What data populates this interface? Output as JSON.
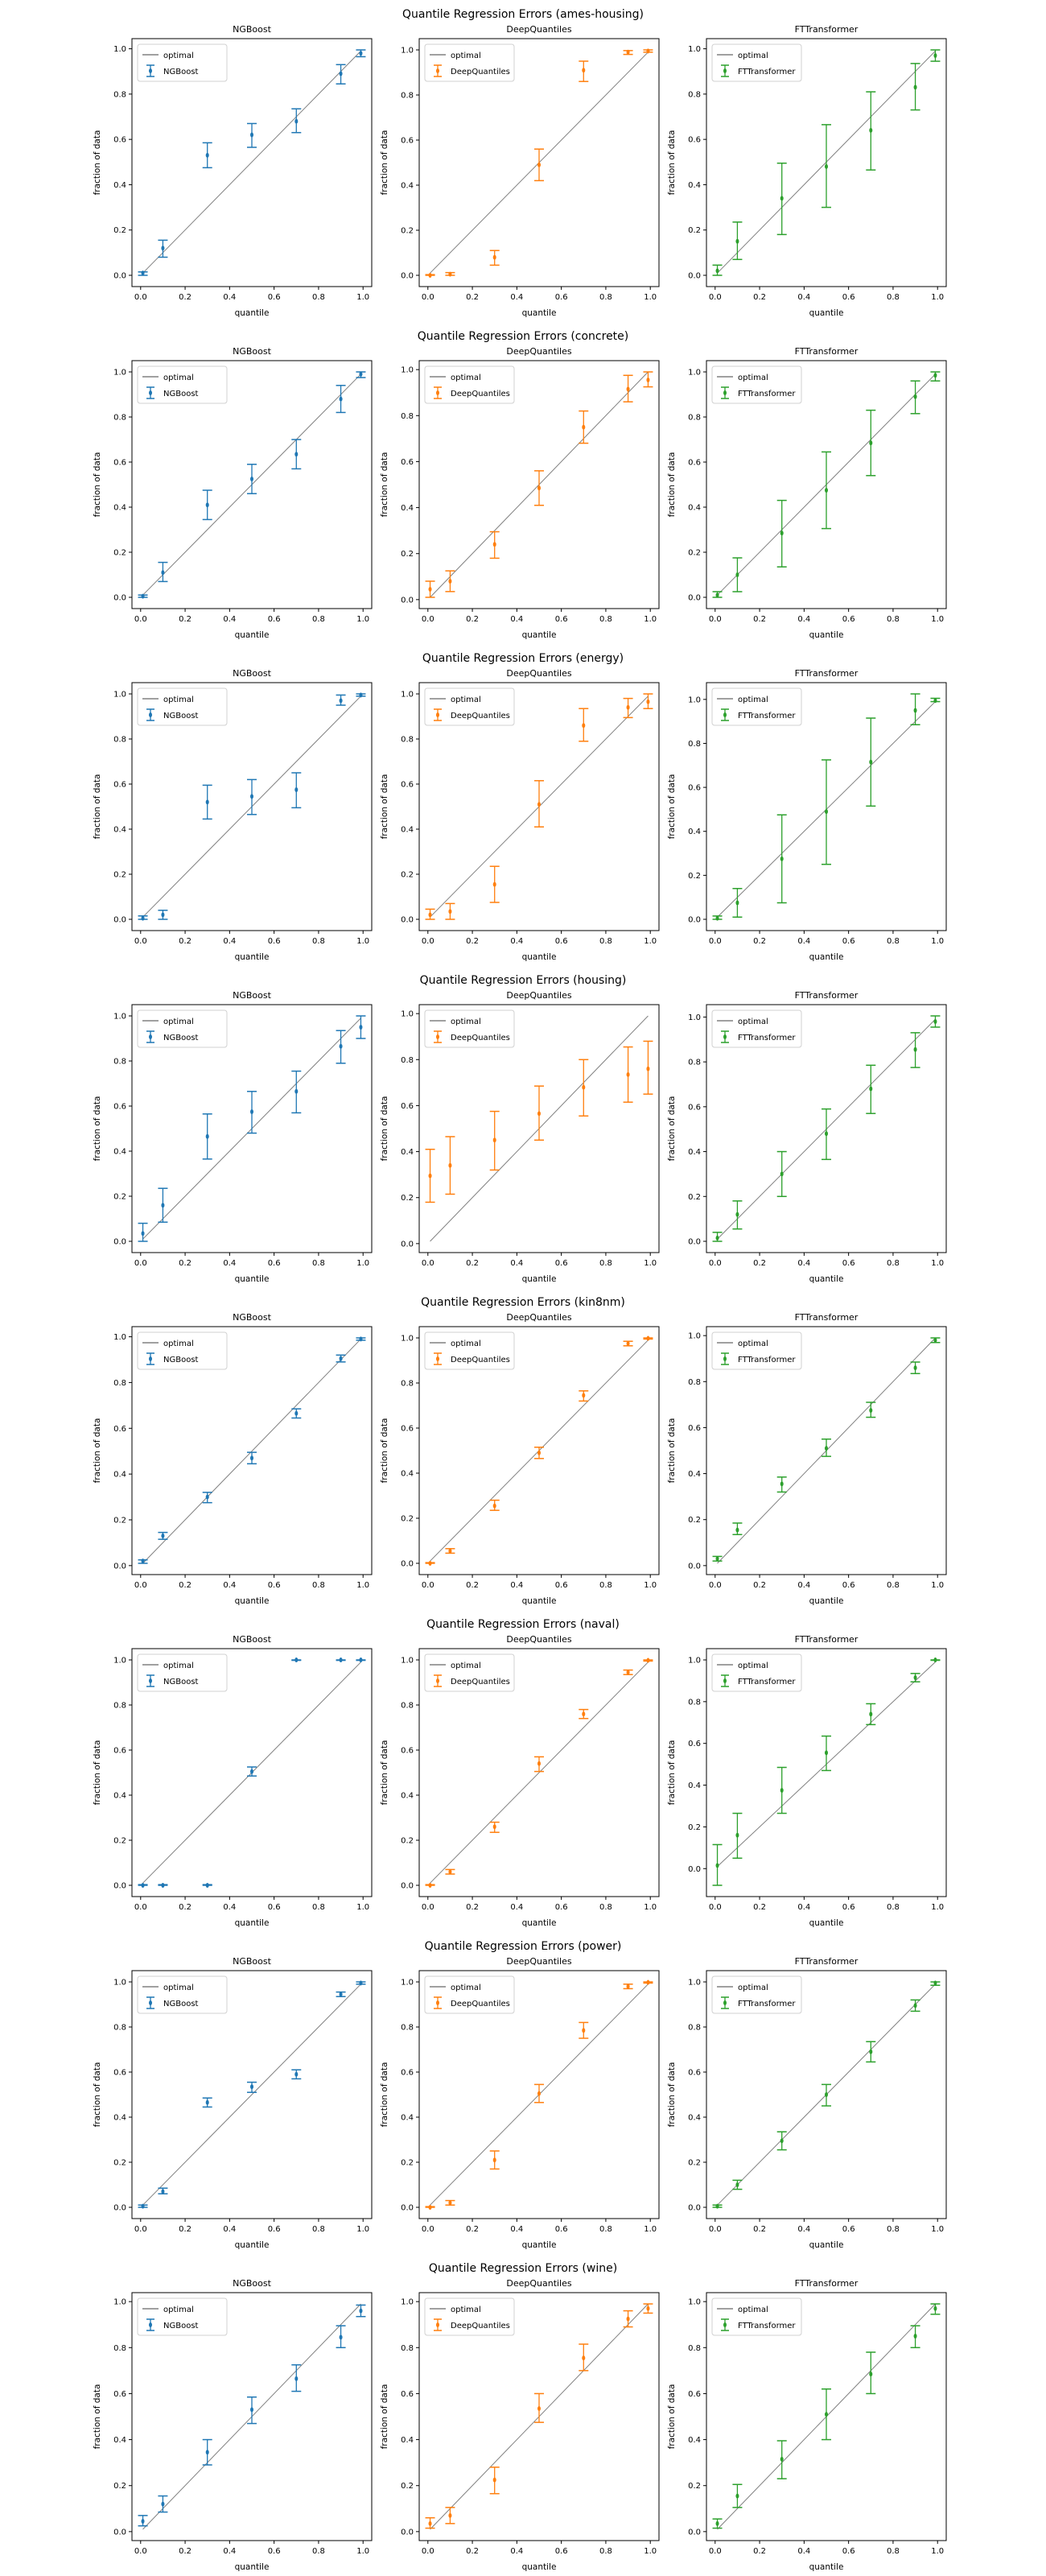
{
  "common": {
    "xlabel": "quantile",
    "ylabel": "fraction of data",
    "optimal_label": "optimal",
    "optimal_color": "#808080",
    "xticks": [
      "0.0",
      "0.2",
      "0.4",
      "0.6",
      "0.8",
      "1.0"
    ],
    "yticks": [
      "0.0",
      "0.2",
      "0.4",
      "0.6",
      "0.8",
      "1.0"
    ]
  },
  "chart_data": [
    {
      "type": "scatter",
      "title": "Quantile Regression Errors (ames-housing)",
      "x": [
        0.01,
        0.1,
        0.3,
        0.5,
        0.7,
        0.9,
        0.99
      ],
      "panels": [
        {
          "title": "NGBoost",
          "series_name": "NGBoost",
          "color": "#1f77b4",
          "y": [
            0.01,
            0.12,
            0.53,
            0.62,
            0.68,
            0.89,
            0.98
          ],
          "err_low": [
            0.0,
            0.08,
            0.475,
            0.565,
            0.63,
            0.845,
            0.965
          ],
          "err_high": [
            0.015,
            0.155,
            0.585,
            0.67,
            0.735,
            0.93,
            0.995
          ]
        },
        {
          "title": "DeepQuantiles",
          "series_name": "DeepQuantiles",
          "color": "#ff7f0e",
          "y": [
            0.0,
            0.005,
            0.08,
            0.49,
            0.91,
            0.99,
            0.995
          ],
          "err_low": [
            0.0,
            0.0,
            0.045,
            0.42,
            0.86,
            0.98,
            0.99
          ],
          "err_high": [
            0.003,
            0.012,
            0.11,
            0.56,
            0.95,
            0.997,
            1.0
          ]
        },
        {
          "title": "FTTransformer",
          "series_name": "FTTransformer",
          "color": "#2ca02c",
          "y": [
            0.02,
            0.15,
            0.34,
            0.48,
            0.64,
            0.83,
            0.97
          ],
          "err_low": [
            0.0,
            0.07,
            0.18,
            0.3,
            0.465,
            0.73,
            0.945
          ],
          "err_high": [
            0.045,
            0.235,
            0.495,
            0.665,
            0.81,
            0.935,
            0.995
          ]
        }
      ]
    },
    {
      "type": "scatter",
      "title": "Quantile Regression Errors (concrete)",
      "x": [
        0.01,
        0.1,
        0.3,
        0.5,
        0.7,
        0.9,
        0.99
      ],
      "panels": [
        {
          "title": "NGBoost",
          "series_name": "NGBoost",
          "color": "#1f77b4",
          "y": [
            0.005,
            0.11,
            0.41,
            0.525,
            0.635,
            0.88,
            0.99
          ],
          "err_low": [
            0.0,
            0.07,
            0.345,
            0.46,
            0.57,
            0.82,
            0.975
          ],
          "err_high": [
            0.01,
            0.155,
            0.475,
            0.59,
            0.7,
            0.94,
            1.0
          ]
        },
        {
          "title": "DeepQuantiles",
          "series_name": "DeepQuantiles",
          "color": "#ff7f0e",
          "y": [
            0.045,
            0.08,
            0.24,
            0.485,
            0.75,
            0.915,
            0.955
          ],
          "err_low": [
            0.01,
            0.035,
            0.18,
            0.41,
            0.68,
            0.86,
            0.925
          ],
          "err_high": [
            0.08,
            0.125,
            0.295,
            0.56,
            0.82,
            0.975,
            0.99
          ]
        },
        {
          "title": "FTTransformer",
          "series_name": "FTTransformer",
          "color": "#2ca02c",
          "y": [
            0.01,
            0.1,
            0.285,
            0.475,
            0.685,
            0.89,
            0.985
          ],
          "err_low": [
            0.0,
            0.025,
            0.135,
            0.305,
            0.54,
            0.815,
            0.96
          ],
          "err_high": [
            0.025,
            0.175,
            0.43,
            0.645,
            0.83,
            0.96,
            1.0
          ]
        }
      ]
    },
    {
      "type": "scatter",
      "title": "Quantile Regression Errors (energy)",
      "x": [
        0.01,
        0.1,
        0.3,
        0.5,
        0.7,
        0.9,
        0.99
      ],
      "panels": [
        {
          "title": "NGBoost",
          "series_name": "NGBoost",
          "color": "#1f77b4",
          "y": [
            0.005,
            0.02,
            0.52,
            0.545,
            0.575,
            0.97,
            0.995
          ],
          "err_low": [
            0.0,
            0.0,
            0.445,
            0.465,
            0.495,
            0.95,
            0.99
          ],
          "err_high": [
            0.015,
            0.04,
            0.595,
            0.62,
            0.65,
            0.995,
            1.0
          ]
        },
        {
          "title": "DeepQuantiles",
          "series_name": "DeepQuantiles",
          "color": "#ff7f0e",
          "y": [
            0.02,
            0.035,
            0.155,
            0.51,
            0.86,
            0.94,
            0.965
          ],
          "err_low": [
            0.0,
            0.0,
            0.075,
            0.41,
            0.79,
            0.895,
            0.935
          ],
          "err_high": [
            0.045,
            0.07,
            0.235,
            0.615,
            0.935,
            0.98,
            1.0
          ]
        },
        {
          "title": "FTTransformer",
          "series_name": "FTTransformer",
          "color": "#2ca02c",
          "y": [
            0.005,
            0.075,
            0.275,
            0.49,
            0.715,
            0.95,
            0.995
          ],
          "err_low": [
            0.0,
            0.01,
            0.075,
            0.25,
            0.515,
            0.885,
            0.99
          ],
          "err_high": [
            0.015,
            0.14,
            0.475,
            0.725,
            0.915,
            1.025,
            1.005
          ]
        }
      ]
    },
    {
      "type": "scatter",
      "title": "Quantile Regression Errors (housing)",
      "x": [
        0.01,
        0.1,
        0.3,
        0.5,
        0.7,
        0.9,
        0.99
      ],
      "panels": [
        {
          "title": "NGBoost",
          "series_name": "NGBoost",
          "color": "#1f77b4",
          "y": [
            0.035,
            0.16,
            0.465,
            0.575,
            0.665,
            0.865,
            0.95
          ],
          "err_low": [
            0.0,
            0.085,
            0.365,
            0.48,
            0.57,
            0.79,
            0.9
          ],
          "err_high": [
            0.08,
            0.235,
            0.565,
            0.665,
            0.755,
            0.935,
            1.0
          ]
        },
        {
          "title": "DeepQuantiles",
          "series_name": "DeepQuantiles",
          "color": "#ff7f0e",
          "y": [
            0.295,
            0.34,
            0.45,
            0.565,
            0.68,
            0.735,
            0.76
          ],
          "err_low": [
            0.18,
            0.215,
            0.32,
            0.45,
            0.555,
            0.615,
            0.65
          ],
          "err_high": [
            0.41,
            0.465,
            0.575,
            0.685,
            0.8,
            0.855,
            0.88
          ]
        },
        {
          "title": "FTTransformer",
          "series_name": "FTTransformer",
          "color": "#2ca02c",
          "y": [
            0.015,
            0.12,
            0.3,
            0.48,
            0.68,
            0.855,
            0.98
          ],
          "err_low": [
            0.0,
            0.055,
            0.2,
            0.365,
            0.57,
            0.775,
            0.955
          ],
          "err_high": [
            0.04,
            0.18,
            0.4,
            0.59,
            0.785,
            0.93,
            1.005
          ]
        }
      ]
    },
    {
      "type": "scatter",
      "title": "Quantile Regression Errors (kin8nm)",
      "x": [
        0.01,
        0.1,
        0.3,
        0.5,
        0.7,
        0.9,
        0.99
      ],
      "panels": [
        {
          "title": "NGBoost",
          "series_name": "NGBoost",
          "color": "#1f77b4",
          "y": [
            0.02,
            0.13,
            0.3,
            0.47,
            0.665,
            0.905,
            0.99
          ],
          "err_low": [
            0.01,
            0.115,
            0.275,
            0.445,
            0.645,
            0.89,
            0.985
          ],
          "err_high": [
            0.025,
            0.145,
            0.32,
            0.495,
            0.685,
            0.92,
            0.995
          ]
        },
        {
          "title": "DeepQuantiles",
          "series_name": "DeepQuantiles",
          "color": "#ff7f0e",
          "y": [
            0.0,
            0.055,
            0.255,
            0.49,
            0.745,
            0.975,
            0.998
          ],
          "err_low": [
            0.0,
            0.045,
            0.235,
            0.465,
            0.72,
            0.965,
            0.995
          ],
          "err_high": [
            0.003,
            0.065,
            0.28,
            0.515,
            0.765,
            0.985,
            1.0
          ]
        },
        {
          "title": "FTTransformer",
          "series_name": "FTTransformer",
          "color": "#2ca02c",
          "y": [
            0.03,
            0.155,
            0.355,
            0.51,
            0.675,
            0.86,
            0.98
          ],
          "err_low": [
            0.02,
            0.135,
            0.32,
            0.475,
            0.645,
            0.835,
            0.97
          ],
          "err_high": [
            0.04,
            0.185,
            0.385,
            0.55,
            0.71,
            0.885,
            0.99
          ]
        }
      ]
    },
    {
      "type": "scatter",
      "title": "Quantile Regression Errors (naval)",
      "x": [
        0.01,
        0.1,
        0.3,
        0.5,
        0.7,
        0.9,
        0.99
      ],
      "panels": [
        {
          "title": "NGBoost",
          "series_name": "NGBoost",
          "color": "#1f77b4",
          "y": [
            0.0,
            0.0,
            0.0,
            0.505,
            1.0,
            1.0,
            1.0
          ],
          "err_low": [
            0.0,
            0.0,
            0.0,
            0.485,
            0.998,
            0.998,
            0.998
          ],
          "err_high": [
            0.003,
            0.003,
            0.003,
            0.525,
            1.0,
            1.0,
            1.0
          ]
        },
        {
          "title": "DeepQuantiles",
          "series_name": "DeepQuantiles",
          "color": "#ff7f0e",
          "y": [
            0.0,
            0.06,
            0.26,
            0.54,
            0.76,
            0.945,
            0.998
          ],
          "err_low": [
            0.0,
            0.05,
            0.235,
            0.505,
            0.74,
            0.935,
            0.995
          ],
          "err_high": [
            0.003,
            0.07,
            0.28,
            0.57,
            0.78,
            0.955,
            1.0
          ]
        },
        {
          "title": "FTTransformer",
          "series_name": "FTTransformer",
          "color": "#2ca02c",
          "y": [
            0.015,
            0.16,
            0.375,
            0.555,
            0.74,
            0.915,
            1.0
          ],
          "err_low": [
            -0.08,
            0.05,
            0.265,
            0.47,
            0.69,
            0.895,
            0.998
          ],
          "err_high": [
            0.115,
            0.265,
            0.485,
            0.635,
            0.79,
            0.935,
            1.0
          ]
        }
      ]
    },
    {
      "type": "scatter",
      "title": "Quantile Regression Errors (power)",
      "x": [
        0.01,
        0.1,
        0.3,
        0.5,
        0.7,
        0.9,
        0.99
      ],
      "panels": [
        {
          "title": "NGBoost",
          "series_name": "NGBoost",
          "color": "#1f77b4",
          "y": [
            0.005,
            0.07,
            0.465,
            0.535,
            0.59,
            0.945,
            0.995
          ],
          "err_low": [
            0.0,
            0.06,
            0.445,
            0.51,
            0.57,
            0.935,
            0.99
          ],
          "err_high": [
            0.01,
            0.085,
            0.485,
            0.555,
            0.61,
            0.955,
            1.0
          ]
        },
        {
          "title": "DeepQuantiles",
          "series_name": "DeepQuantiles",
          "color": "#ff7f0e",
          "y": [
            0.0,
            0.02,
            0.21,
            0.505,
            0.785,
            0.98,
            0.998
          ],
          "err_low": [
            0.0,
            0.01,
            0.17,
            0.465,
            0.75,
            0.97,
            0.995
          ],
          "err_high": [
            0.003,
            0.03,
            0.25,
            0.545,
            0.82,
            0.99,
            1.0
          ]
        },
        {
          "title": "FTTransformer",
          "series_name": "FTTransformer",
          "color": "#2ca02c",
          "y": [
            0.005,
            0.1,
            0.295,
            0.5,
            0.69,
            0.895,
            0.995
          ],
          "err_low": [
            0.0,
            0.08,
            0.255,
            0.45,
            0.645,
            0.87,
            0.985
          ],
          "err_high": [
            0.01,
            0.12,
            0.335,
            0.545,
            0.735,
            0.92,
            1.0
          ]
        }
      ]
    },
    {
      "type": "scatter",
      "title": "Quantile Regression Errors (wine)",
      "x": [
        0.01,
        0.1,
        0.3,
        0.5,
        0.7,
        0.9,
        0.99
      ],
      "panels": [
        {
          "title": "NGBoost",
          "series_name": "NGBoost",
          "color": "#1f77b4",
          "y": [
            0.045,
            0.12,
            0.345,
            0.53,
            0.665,
            0.845,
            0.96
          ],
          "err_low": [
            0.025,
            0.085,
            0.29,
            0.47,
            0.61,
            0.8,
            0.935
          ],
          "err_high": [
            0.07,
            0.155,
            0.4,
            0.585,
            0.725,
            0.895,
            0.985
          ]
        },
        {
          "title": "DeepQuantiles",
          "series_name": "DeepQuantiles",
          "color": "#ff7f0e",
          "y": [
            0.035,
            0.07,
            0.225,
            0.535,
            0.755,
            0.925,
            0.97
          ],
          "err_low": [
            0.015,
            0.035,
            0.165,
            0.475,
            0.7,
            0.89,
            0.95
          ],
          "err_high": [
            0.06,
            0.105,
            0.28,
            0.6,
            0.815,
            0.96,
            0.99
          ]
        },
        {
          "title": "FTTransformer",
          "series_name": "FTTransformer",
          "color": "#2ca02c",
          "y": [
            0.035,
            0.155,
            0.315,
            0.51,
            0.685,
            0.85,
            0.97
          ],
          "err_low": [
            0.015,
            0.105,
            0.23,
            0.4,
            0.6,
            0.8,
            0.945
          ],
          "err_high": [
            0.055,
            0.205,
            0.395,
            0.62,
            0.78,
            0.895,
            0.99
          ]
        }
      ]
    }
  ]
}
